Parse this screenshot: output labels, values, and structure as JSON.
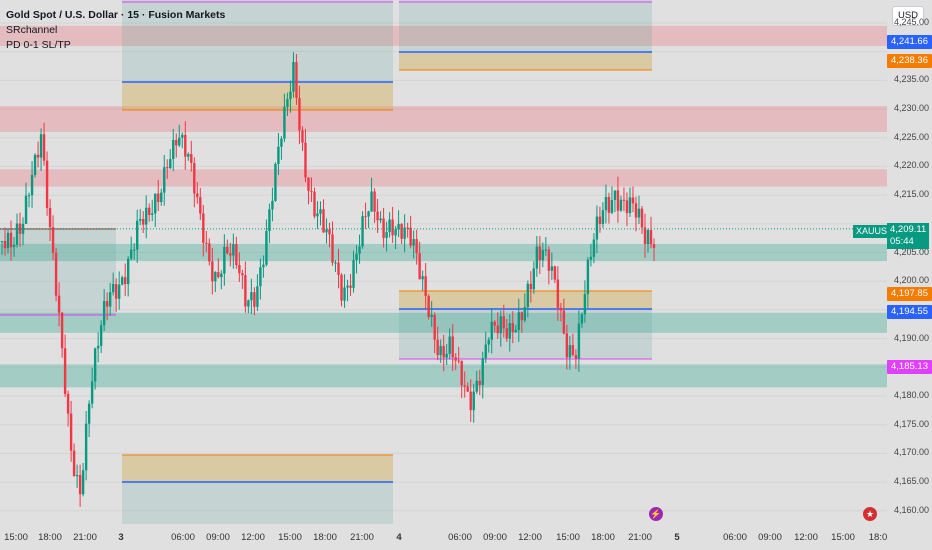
{
  "legend": {
    "title": "Gold Spot / U.S. Dollar · 15 · Fusion Markets",
    "indicators": [
      "SRchannel",
      "PD 0-1 SL/TP"
    ]
  },
  "price_scale": {
    "currency_button": "USD",
    "ticks": [
      "4,245.00",
      "4,235.00",
      "4,230.00",
      "4,225.00",
      "4,220.00",
      "4,215.00",
      "4,205.00",
      "4,200.00",
      "4,190.00",
      "4,180.00",
      "4,175.00",
      "4,170.00",
      "4,165.00",
      "4,160.00"
    ]
  },
  "price_labels": [
    {
      "text": "4,241.66",
      "color": "#2962ff",
      "price": 4241.66
    },
    {
      "text": "4,238.36",
      "color": "#f57c00",
      "price": 4238.36
    },
    {
      "text": "4,197.85",
      "color": "#f57c00",
      "price": 4197.85
    },
    {
      "text": "4,194.55",
      "color": "#2962ff",
      "price": 4194.55
    },
    {
      "text": "4,185.13",
      "color": "#e040fb",
      "price": 4185.13
    }
  ],
  "current": {
    "symbol": "XAUUSD",
    "price": "4,209.11",
    "countdown": "05:44",
    "color": "#089981"
  },
  "time_axis": [
    {
      "text": "15:00",
      "bold": false
    },
    {
      "text": "18:00",
      "bold": false
    },
    {
      "text": "21:00",
      "bold": false
    },
    {
      "text": "3",
      "bold": true
    },
    {
      "text": "06:00",
      "bold": false
    },
    {
      "text": "09:00",
      "bold": false
    },
    {
      "text": "12:00",
      "bold": false
    },
    {
      "text": "15:00",
      "bold": false
    },
    {
      "text": "18:00",
      "bold": false
    },
    {
      "text": "21:00",
      "bold": false
    },
    {
      "text": "4",
      "bold": true
    },
    {
      "text": "06:00",
      "bold": false
    },
    {
      "text": "09:00",
      "bold": false
    },
    {
      "text": "12:00",
      "bold": false
    },
    {
      "text": "15:00",
      "bold": false
    },
    {
      "text": "18:00",
      "bold": false
    },
    {
      "text": "21:00",
      "bold": false
    },
    {
      "text": "5",
      "bold": true
    },
    {
      "text": "06:00",
      "bold": false
    },
    {
      "text": "09:00",
      "bold": false
    },
    {
      "text": "12:00",
      "bold": false
    },
    {
      "text": "15:00",
      "bold": false
    },
    {
      "text": "18:0",
      "bold": false
    }
  ],
  "colors": {
    "up": "#089981",
    "down": "#f23645",
    "resistance": "rgba(242,54,69,0.22)",
    "support": "rgba(8,153,129,0.28)"
  },
  "chart_data": {
    "type": "candlestick",
    "symbol": "XAUUSD",
    "interval": "15",
    "ylim": [
      4157,
      4249
    ],
    "resistance_zones": [
      [
        4241.0,
        4244.5
      ],
      [
        4226.0,
        4230.5
      ],
      [
        4216.5,
        4219.5
      ]
    ],
    "support_zones": [
      [
        4203.5,
        4206.5
      ],
      [
        4191.0,
        4194.5
      ],
      [
        4181.5,
        4185.5
      ]
    ],
    "close_path": [
      4207,
      4203,
      4208,
      4221,
      4228,
      4206,
      4188,
      4172,
      4166,
      4181,
      4188,
      4196,
      4201,
      4206,
      4209,
      4208,
      4214,
      4224,
      4227,
      4220,
      4212,
      4207,
      4203,
      4205,
      4201,
      4196,
      4200,
      4208,
      4216,
      4226,
      4238,
      4224,
      4213,
      4207,
      4203,
      4200,
      4204,
      4208,
      4211,
      4209,
      4213,
      4210,
      4205,
      4199,
      4196,
      4190,
      4188,
      4181,
      4178,
      4186,
      4193,
      4190,
      4188,
      4194,
      4201,
      4205,
      4201,
      4197,
      4191,
      4190,
      4198,
      4206,
      4214,
      4218,
      4214,
      4210,
      4206,
      4209
    ]
  },
  "markers": [
    {
      "symbol": "⚡",
      "color": "#9c27b0"
    },
    {
      "symbol": "★",
      "color": "#d32f2f"
    }
  ]
}
